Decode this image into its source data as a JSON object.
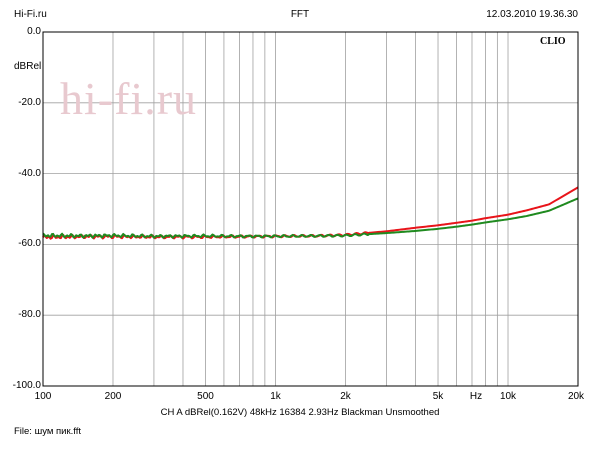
{
  "header": {
    "site": "Hi-Fi.ru",
    "title": "FFT",
    "datetime": "12.03.2010 19.36.30"
  },
  "brand": "CLIO",
  "watermark": "hi-fi.ru",
  "footer": {
    "settings": "CH A   dBRel(0.162V)   48kHz   16384   2.93Hz   Blackman   Unsmoothed",
    "file": "File: шум пик.fft"
  },
  "colors": {
    "series_red": "#e8141a",
    "series_green": "#1f8a1f",
    "grid": "#a0a0a0",
    "frame": "#000000"
  },
  "chart_data": {
    "type": "line",
    "xscale": "log",
    "xlim": [
      100,
      20000
    ],
    "ylim": [
      -100,
      0
    ],
    "ylabel": "dBRel",
    "xlabel": "Hz",
    "grid": true,
    "yticks": [
      0,
      -20,
      -40,
      -60,
      -80,
      -100
    ],
    "ytick_labels": [
      "0.0",
      "-20.0",
      "-40.0",
      "-60.0",
      "-80.0",
      "-100.0"
    ],
    "xticks": [
      100,
      200,
      500,
      1000,
      2000,
      5000,
      10000,
      20000
    ],
    "xtick_labels": [
      "100",
      "200",
      "500",
      "1k",
      "2k",
      "5k",
      "10k",
      "20k"
    ],
    "series": [
      {
        "color": "#e8141a",
        "x": [
          100,
          150,
          200,
          300,
          500,
          700,
          1000,
          1500,
          2000,
          3000,
          4000,
          5000,
          6000,
          7000,
          8000,
          10000,
          12000,
          15000,
          20000
        ],
        "y": [
          -58.0,
          -57.8,
          -57.8,
          -57.9,
          -57.9,
          -57.8,
          -57.7,
          -57.6,
          -57.3,
          -56.3,
          -55.3,
          -54.6,
          -53.9,
          -53.3,
          -52.6,
          -51.6,
          -50.4,
          -48.7,
          -43.9
        ]
      },
      {
        "color": "#1f8a1f",
        "x": [
          100,
          150,
          200,
          300,
          500,
          700,
          1000,
          1500,
          2000,
          3000,
          4000,
          5000,
          6000,
          7000,
          8000,
          10000,
          12000,
          15000,
          20000
        ],
        "y": [
          -57.5,
          -57.6,
          -57.5,
          -57.7,
          -57.6,
          -57.7,
          -57.7,
          -57.6,
          -57.5,
          -56.8,
          -56.2,
          -55.6,
          -55.0,
          -54.4,
          -53.8,
          -52.9,
          -52.0,
          -50.5,
          -47.0
        ]
      }
    ]
  }
}
